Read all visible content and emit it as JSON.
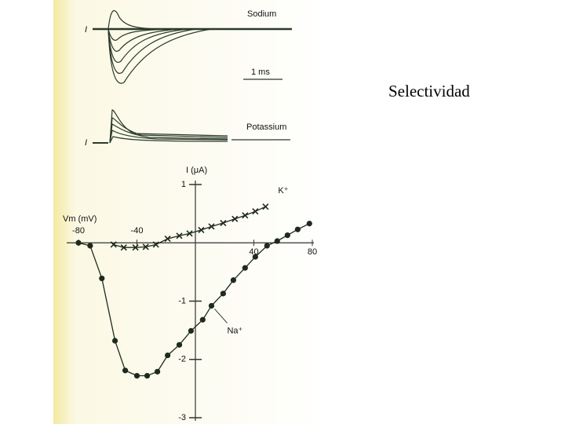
{
  "slide_title": "Selectividad",
  "traces": {
    "current_label": "I",
    "sodium_label": "Sodium",
    "scale_label": "1 ms",
    "potassium_label": "Potassium"
  },
  "chart_data": {
    "type": "line",
    "x_label": "Vm (mV)",
    "y_label": "I (μA)",
    "xlim": [
      -80,
      80
    ],
    "ylim": [
      -3,
      1
    ],
    "xticks": [
      -80,
      -40,
      40,
      80
    ],
    "yticks": [
      -3,
      -2,
      -1,
      1
    ],
    "grid": false,
    "series": [
      {
        "name": "Na⁺",
        "color": "#1e2a1e",
        "marker": "circle",
        "x": [
          -80,
          -72,
          -64,
          -55,
          -48,
          -40,
          -33,
          -26,
          -19,
          -11,
          -3,
          5,
          11,
          19,
          26,
          34,
          41,
          49,
          56,
          63,
          70,
          78
        ],
        "values": [
          0,
          -0.05,
          -0.61,
          -1.68,
          -2.19,
          -2.28,
          -2.28,
          -2.21,
          -1.93,
          -1.75,
          -1.51,
          -1.32,
          -1.08,
          -0.87,
          -0.64,
          -0.43,
          -0.24,
          -0.05,
          0.03,
          0.13,
          0.23,
          0.33
        ]
      },
      {
        "name": "K⁺",
        "color": "#1e2a1e",
        "marker": "cross",
        "x": [
          -56,
          -49,
          -41,
          -34,
          -27,
          -19,
          -11,
          -4,
          4,
          11,
          19,
          27,
          34,
          41,
          48
        ],
        "values": [
          -0.03,
          -0.08,
          -0.08,
          -0.07,
          -0.03,
          0.07,
          0.12,
          0.16,
          0.22,
          0.28,
          0.34,
          0.41,
          0.47,
          0.54,
          0.62
        ]
      }
    ]
  }
}
